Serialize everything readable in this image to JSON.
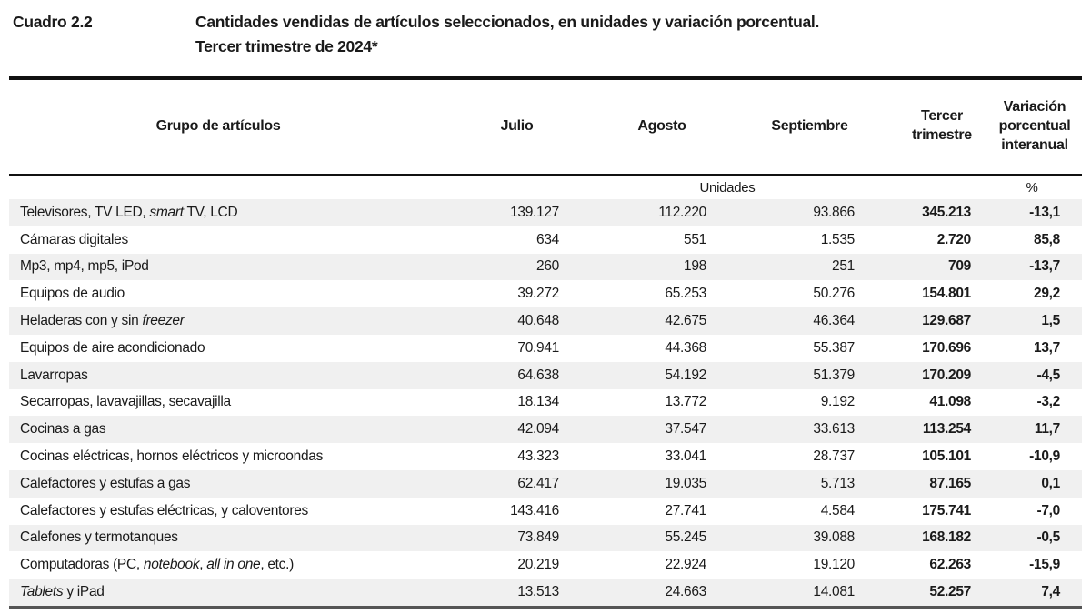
{
  "header": {
    "code": "Cuadro 2.2",
    "title_line1": "Cantidades vendidas de artículos seleccionados, en unidades y variación porcentual.",
    "title_line2": "Tercer trimestre de 2024*"
  },
  "table": {
    "columns": [
      "Grupo de artículos",
      "Julio",
      "Agosto",
      "Septiembre",
      "Tercer trimestre",
      "Variación porcentual interanual"
    ],
    "units_label": "Unidades",
    "percent_label": "%",
    "rows": [
      {
        "label": [
          {
            "t": "Televisores, TV LED, ",
            "i": false
          },
          {
            "t": "smart",
            "i": true
          },
          {
            "t": " TV, LCD",
            "i": false
          }
        ],
        "julio": "139.127",
        "agosto": "112.220",
        "septiembre": "93.866",
        "trimestre": "345.213",
        "variacion": "-13,1"
      },
      {
        "label": [
          {
            "t": "Cámaras digitales",
            "i": false
          }
        ],
        "julio": "634",
        "agosto": "551",
        "septiembre": "1.535",
        "trimestre": "2.720",
        "variacion": "85,8"
      },
      {
        "label": [
          {
            "t": "Mp3, mp4, mp5, iPod",
            "i": false
          }
        ],
        "julio": "260",
        "agosto": "198",
        "septiembre": "251",
        "trimestre": "709",
        "variacion": "-13,7"
      },
      {
        "label": [
          {
            "t": "Equipos de audio",
            "i": false
          }
        ],
        "julio": "39.272",
        "agosto": "65.253",
        "septiembre": "50.276",
        "trimestre": "154.801",
        "variacion": "29,2"
      },
      {
        "label": [
          {
            "t": "Heladeras con y sin ",
            "i": false
          },
          {
            "t": "freezer",
            "i": true
          }
        ],
        "julio": "40.648",
        "agosto": "42.675",
        "septiembre": "46.364",
        "trimestre": "129.687",
        "variacion": "1,5"
      },
      {
        "label": [
          {
            "t": "Equipos de aire acondicionado",
            "i": false
          }
        ],
        "julio": "70.941",
        "agosto": "44.368",
        "septiembre": "55.387",
        "trimestre": "170.696",
        "variacion": "13,7"
      },
      {
        "label": [
          {
            "t": "Lavarropas",
            "i": false
          }
        ],
        "julio": "64.638",
        "agosto": "54.192",
        "septiembre": "51.379",
        "trimestre": "170.209",
        "variacion": "-4,5"
      },
      {
        "label": [
          {
            "t": "Secarropas, lavavajillas, secavajilla",
            "i": false
          }
        ],
        "julio": "18.134",
        "agosto": "13.772",
        "septiembre": "9.192",
        "trimestre": "41.098",
        "variacion": "-3,2"
      },
      {
        "label": [
          {
            "t": "Cocinas a gas",
            "i": false
          }
        ],
        "julio": "42.094",
        "agosto": "37.547",
        "septiembre": "33.613",
        "trimestre": "113.254",
        "variacion": "11,7"
      },
      {
        "label": [
          {
            "t": "Cocinas eléctricas, hornos eléctricos y microondas",
            "i": false
          }
        ],
        "julio": "43.323",
        "agosto": "33.041",
        "septiembre": "28.737",
        "trimestre": "105.101",
        "variacion": "-10,9"
      },
      {
        "label": [
          {
            "t": "Calefactores y estufas a gas",
            "i": false
          }
        ],
        "julio": "62.417",
        "agosto": "19.035",
        "septiembre": "5.713",
        "trimestre": "87.165",
        "variacion": "0,1"
      },
      {
        "label": [
          {
            "t": "Calefactores y estufas eléctricas, y caloventores",
            "i": false
          }
        ],
        "julio": "143.416",
        "agosto": "27.741",
        "septiembre": "4.584",
        "trimestre": "175.741",
        "variacion": "-7,0"
      },
      {
        "label": [
          {
            "t": "Calefones y termotanques",
            "i": false
          }
        ],
        "julio": "73.849",
        "agosto": "55.245",
        "septiembre": "39.088",
        "trimestre": "168.182",
        "variacion": "-0,5"
      },
      {
        "label": [
          {
            "t": "Computadoras (PC, ",
            "i": false
          },
          {
            "t": "notebook",
            "i": true
          },
          {
            "t": ", ",
            "i": false
          },
          {
            "t": "all in one",
            "i": true
          },
          {
            "t": ", etc.)",
            "i": false
          }
        ],
        "julio": "20.219",
        "agosto": "22.924",
        "septiembre": "19.120",
        "trimestre": "62.263",
        "variacion": "-15,9"
      },
      {
        "label": [
          {
            "t": "Tablets",
            "i": true
          },
          {
            "t": " y iPad",
            "i": false
          }
        ],
        "julio": "13.513",
        "agosto": "24.663",
        "septiembre": "14.081",
        "trimestre": "52.257",
        "variacion": "7,4"
      }
    ]
  },
  "colors": {
    "text": "#1a1a1a",
    "stripe": "#f0f0f0",
    "rule": "#111111"
  },
  "chart_data": {
    "type": "table",
    "title": "Cuadro 2.2 - Cantidades vendidas de artículos seleccionados, en unidades y variación porcentual. Tercer trimestre de 2024*",
    "columns": [
      "Grupo de artículos",
      "Julio",
      "Agosto",
      "Septiembre",
      "Tercer trimestre",
      "Variación porcentual interanual (%)"
    ],
    "units_note": "Unidades",
    "rows": [
      [
        "Televisores, TV LED, smart TV, LCD",
        139127,
        112220,
        93866,
        345213,
        -13.1
      ],
      [
        "Cámaras digitales",
        634,
        551,
        1535,
        2720,
        85.8
      ],
      [
        "Mp3, mp4, mp5, iPod",
        260,
        198,
        251,
        709,
        -13.7
      ],
      [
        "Equipos de audio",
        39272,
        65253,
        50276,
        154801,
        29.2
      ],
      [
        "Heladeras con y sin freezer",
        40648,
        42675,
        46364,
        129687,
        1.5
      ],
      [
        "Equipos de aire acondicionado",
        70941,
        44368,
        55387,
        170696,
        13.7
      ],
      [
        "Lavarropas",
        64638,
        54192,
        51379,
        170209,
        -4.5
      ],
      [
        "Secarropas, lavavajillas, secavajilla",
        18134,
        13772,
        9192,
        41098,
        -3.2
      ],
      [
        "Cocinas a gas",
        42094,
        37547,
        33613,
        113254,
        11.7
      ],
      [
        "Cocinas eléctricas, hornos eléctricos y microondas",
        43323,
        33041,
        28737,
        105101,
        -10.9
      ],
      [
        "Calefactores y estufas a gas",
        62417,
        19035,
        5713,
        87165,
        0.1
      ],
      [
        "Calefactores y estufas eléctricas, y caloventores",
        143416,
        27741,
        4584,
        175741,
        -7.0
      ],
      [
        "Calefones y termotanques",
        73849,
        55245,
        39088,
        168182,
        -0.5
      ],
      [
        "Computadoras (PC, notebook, all in one, etc.)",
        20219,
        22924,
        19120,
        62263,
        -15.9
      ],
      [
        "Tablets y iPad",
        13513,
        24663,
        14081,
        52257,
        7.4
      ]
    ]
  }
}
